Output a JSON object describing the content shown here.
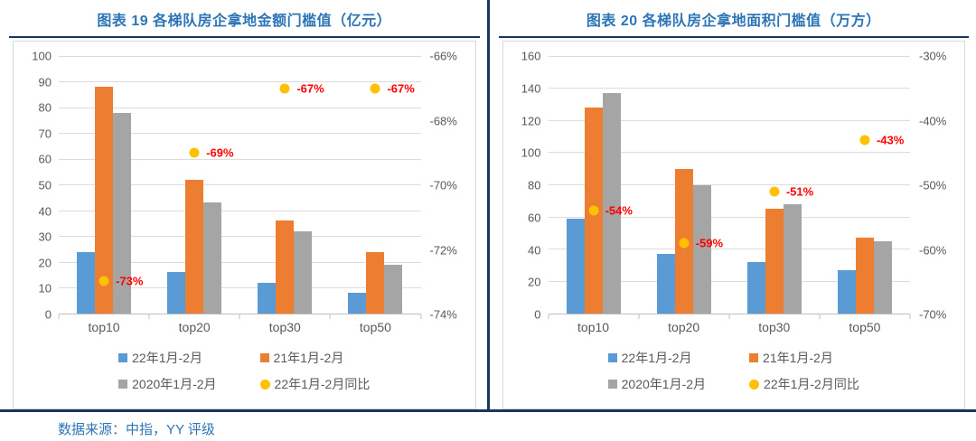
{
  "footer": {
    "source": "数据来源：中指，YY 评级"
  },
  "colors": {
    "title_blue": "#2E75B6",
    "rule_navy": "#17375E",
    "bar_blue": "#5B9BD5",
    "bar_orange": "#ED7D31",
    "bar_gray": "#A5A5A5",
    "dot_yellow": "#FFC000",
    "dot_label_red": "#FF0000",
    "axis_text_gray": "#595959"
  },
  "legend": {
    "items": [
      {
        "label": "22年1月-2月",
        "marker": "square",
        "color": "#5B9BD5"
      },
      {
        "label": "21年1月-2月",
        "marker": "square",
        "color": "#ED7D31"
      },
      {
        "label": "2020年1月-2月",
        "marker": "square",
        "color": "#A5A5A5"
      },
      {
        "label": "22年1月-2月同比",
        "marker": "circle",
        "color": "#FFC000"
      }
    ]
  },
  "chart_data": [
    {
      "type": "bar",
      "title": "图表 19 各梯队房企拿地金额门槛值（亿元）",
      "categories": [
        "top10",
        "top20",
        "top30",
        "top50"
      ],
      "series": [
        {
          "name": "22年1月-2月",
          "kind": "bar",
          "color": "#5B9BD5",
          "values": [
            24,
            16,
            12,
            8
          ]
        },
        {
          "name": "21年1月-2月",
          "kind": "bar",
          "color": "#ED7D31",
          "values": [
            88,
            52,
            36,
            24
          ]
        },
        {
          "name": "2020年1月-2月",
          "kind": "bar",
          "color": "#A5A5A5",
          "values": [
            78,
            43,
            32,
            19
          ]
        },
        {
          "name": "22年1月-2月同比",
          "kind": "scatter",
          "axis": "right",
          "color": "#FFC000",
          "values": [
            -73,
            -69,
            -67,
            -67
          ],
          "labels": [
            "-73%",
            "-69%",
            "-67%",
            "-67%"
          ]
        }
      ],
      "left_axis": {
        "min": 0,
        "max": 100,
        "ticks": [
          0,
          10,
          20,
          30,
          40,
          50,
          60,
          70,
          80,
          90,
          100
        ]
      },
      "right_axis": {
        "min": -74,
        "max": -66,
        "ticks": [
          {
            "label": "-66%",
            "value": -66
          },
          {
            "label": "-68%",
            "value": -68
          },
          {
            "label": "-70%",
            "value": -70
          },
          {
            "label": "-72%",
            "value": -72
          },
          {
            "label": "-74%",
            "value": -74
          }
        ]
      },
      "grid": true,
      "legend_position": "bottom"
    },
    {
      "type": "bar",
      "title": "图表 20 各梯队房企拿地面积门槛值（万方）",
      "categories": [
        "top10",
        "top20",
        "top30",
        "top50"
      ],
      "series": [
        {
          "name": "22年1月-2月",
          "kind": "bar",
          "color": "#5B9BD5",
          "values": [
            59,
            37,
            32,
            27
          ]
        },
        {
          "name": "21年1月-2月",
          "kind": "bar",
          "color": "#ED7D31",
          "values": [
            128,
            90,
            65,
            47
          ]
        },
        {
          "name": "2020年1月-2月",
          "kind": "bar",
          "color": "#A5A5A5",
          "values": [
            137,
            80,
            68,
            45
          ]
        },
        {
          "name": "22年1月-2月同比",
          "kind": "scatter",
          "axis": "right",
          "color": "#FFC000",
          "values": [
            -54,
            -59,
            -51,
            -43
          ],
          "labels": [
            "-54%",
            "-59%",
            "-51%",
            "-43%"
          ]
        }
      ],
      "left_axis": {
        "min": 0,
        "max": 160,
        "ticks": [
          0,
          20,
          40,
          60,
          80,
          100,
          120,
          140,
          160
        ]
      },
      "right_axis": {
        "min": -70,
        "max": -30,
        "ticks": [
          {
            "label": "-30%",
            "value": -30
          },
          {
            "label": "-40%",
            "value": -40
          },
          {
            "label": "-50%",
            "value": -50
          },
          {
            "label": "-60%",
            "value": -60
          },
          {
            "label": "-70%",
            "value": -70
          }
        ]
      },
      "grid": true,
      "legend_position": "bottom"
    }
  ]
}
